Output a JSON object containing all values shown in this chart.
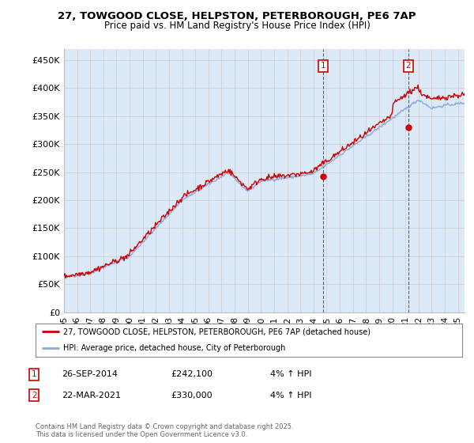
{
  "title_line1": "27, TOWGOOD CLOSE, HELPSTON, PETERBOROUGH, PE6 7AP",
  "title_line2": "Price paid vs. HM Land Registry's House Price Index (HPI)",
  "background_color": "#ffffff",
  "plot_bg_color": "#dce9f7",
  "grid_color": "#cccccc",
  "red_line_color": "#cc0000",
  "blue_line_color": "#88aadd",
  "annotation_box_color": "#cc0000",
  "dashed_line_color": "#cc0000",
  "sale1_date_num": 2014.74,
  "sale2_date_num": 2021.23,
  "legend_entry1": "27, TOWGOOD CLOSE, HELPSTON, PETERBOROUGH, PE6 7AP (detached house)",
  "legend_entry2": "HPI: Average price, detached house, City of Peterborough",
  "ann1_date": "26-SEP-2014",
  "ann1_price": "£242,100",
  "ann1_hpi": "4% ↑ HPI",
  "ann2_date": "22-MAR-2021",
  "ann2_price": "£330,000",
  "ann2_hpi": "4% ↑ HPI",
  "copyright_text": "Contains HM Land Registry data © Crown copyright and database right 2025.\nThis data is licensed under the Open Government Licence v3.0.",
  "ylim_min": 0,
  "ylim_max": 470000,
  "yticks": [
    0,
    50000,
    100000,
    150000,
    200000,
    250000,
    300000,
    350000,
    400000,
    450000
  ],
  "ytick_labels": [
    "£0",
    "£50K",
    "£100K",
    "£150K",
    "£200K",
    "£250K",
    "£300K",
    "£350K",
    "£400K",
    "£450K"
  ],
  "xmin": 1995.0,
  "xmax": 2025.5,
  "sale1_y": 242100,
  "sale2_y": 330000
}
